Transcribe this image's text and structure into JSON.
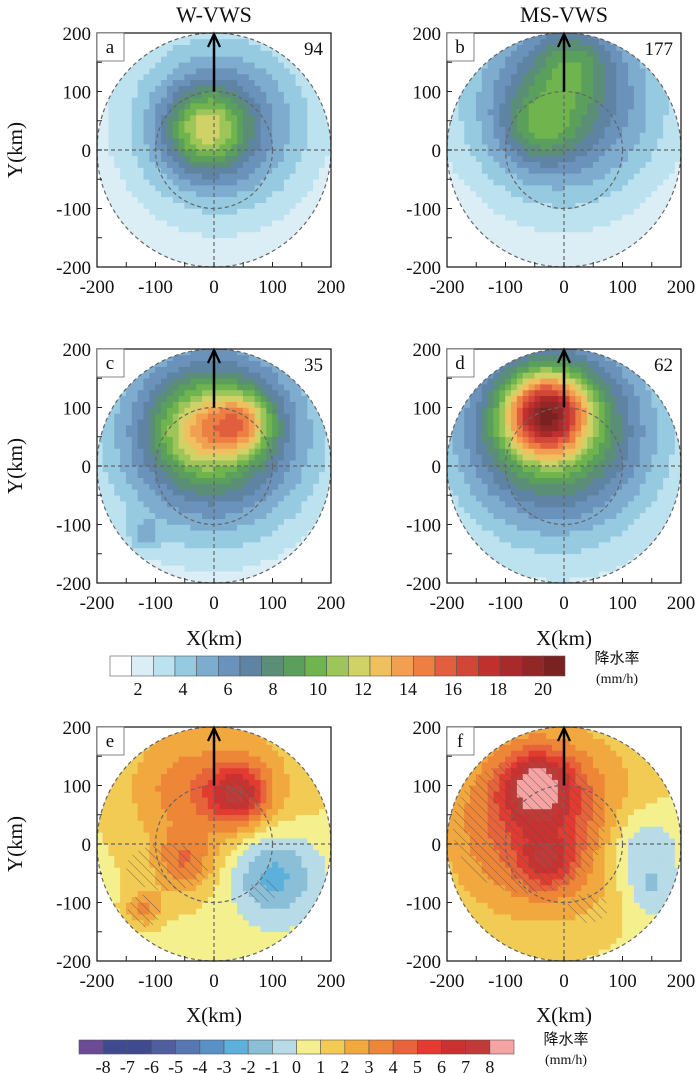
{
  "chart_data": {
    "type": "heatmap",
    "column_titles": [
      "W-VWS",
      "MS-VWS"
    ],
    "xlabel": "X(km)",
    "ylabel": "Y(km)",
    "xlim": [
      -200,
      200
    ],
    "ylim": [
      -200,
      200
    ],
    "ticks": [
      "-200",
      "-100",
      "0",
      "100",
      "200"
    ],
    "panels": [
      {
        "letter": "a",
        "count": "94",
        "cmap": "rain",
        "blobs": [
          {
            "x": -15,
            "y": 35,
            "amp": 5,
            "s": 45
          },
          {
            "x": 10,
            "y": 40,
            "amp": 4,
            "s": 90
          },
          {
            "x": 10,
            "y": 50,
            "amp": 3,
            "s": 170
          }
        ],
        "hatch": []
      },
      {
        "letter": "b",
        "count": "177",
        "cmap": "rain",
        "blobs": [
          {
            "x": -40,
            "y": 40,
            "amp": 3,
            "s": 45
          },
          {
            "x": 15,
            "y": 150,
            "amp": 2.5,
            "s": 45
          },
          {
            "x": 0,
            "y": 90,
            "amp": 5,
            "s": 110
          },
          {
            "x": 0,
            "y": 60,
            "amp": 2.5,
            "s": 190
          }
        ],
        "hatch": []
      },
      {
        "letter": "c",
        "count": "35",
        "cmap": "rain",
        "blobs": [
          {
            "x": 50,
            "y": 75,
            "amp": 5,
            "s": 35
          },
          {
            "x": -20,
            "y": 60,
            "amp": 4,
            "s": 50
          },
          {
            "x": 0,
            "y": 60,
            "amp": 7,
            "s": 110
          },
          {
            "x": 0,
            "y": 40,
            "amp": 2.5,
            "s": 200
          },
          {
            "x": -120,
            "y": -120,
            "amp": 2,
            "s": 20
          }
        ],
        "hatch": []
      },
      {
        "letter": "d",
        "count": "62",
        "cmap": "rain",
        "blobs": [
          {
            "x": -30,
            "y": 90,
            "amp": 10,
            "s": 45
          },
          {
            "x": -20,
            "y": 70,
            "amp": 8,
            "s": 105
          },
          {
            "x": 0,
            "y": 20,
            "amp": 3,
            "s": 200
          }
        ],
        "hatch": []
      },
      {
        "letter": "e",
        "count": "",
        "cmap": "diff",
        "blobs": [
          {
            "x": 40,
            "y": 85,
            "amp": 5,
            "s": 38
          },
          {
            "x": -50,
            "y": -30,
            "amp": 2.5,
            "s": 35
          },
          {
            "x": -120,
            "y": -110,
            "amp": 2.5,
            "s": 22
          },
          {
            "x": 100,
            "y": -50,
            "amp": -3.5,
            "s": 55
          },
          {
            "x": 0,
            "y": 110,
            "amp": 2,
            "s": 130
          },
          {
            "x": -60,
            "y": 90,
            "amp": 1.2,
            "s": 50
          },
          {
            "x": 0,
            "y": 0,
            "amp": 0.6,
            "s": 300
          }
        ],
        "hatch": [
          {
            "x": -80,
            "y": -40,
            "rx": 70,
            "ry": 40
          },
          {
            "x": 45,
            "y": 85,
            "rx": 35,
            "ry": 28
          },
          {
            "x": -120,
            "y": -115,
            "rx": 28,
            "ry": 28
          },
          {
            "x": 85,
            "y": -80,
            "rx": 25,
            "ry": 20
          }
        ]
      },
      {
        "letter": "f",
        "count": "",
        "cmap": "diff",
        "blobs": [
          {
            "x": -45,
            "y": 100,
            "amp": 5,
            "s": 40
          },
          {
            "x": -30,
            "y": -30,
            "amp": 3,
            "s": 30
          },
          {
            "x": -40,
            "y": 40,
            "amp": 4.5,
            "s": 110
          },
          {
            "x": 130,
            "y": 0,
            "amp": -2.5,
            "s": 45
          },
          {
            "x": 150,
            "y": -80,
            "amp": -1.8,
            "s": 35
          },
          {
            "x": 0,
            "y": 0,
            "amp": 0.8,
            "s": 300
          }
        ],
        "hatch": [
          {
            "x": -60,
            "y": 30,
            "rx": 130,
            "ry": 115
          },
          {
            "x": 40,
            "y": -110,
            "rx": 35,
            "ry": 25
          }
        ]
      }
    ],
    "colorbars": [
      {
        "id": "rain",
        "title": "降水率",
        "unit": "(mm/h)",
        "labels": [
          "2",
          "4",
          "6",
          "8",
          "10",
          "12",
          "14",
          "16",
          "18",
          "20"
        ],
        "label_values": [
          2,
          4,
          6,
          8,
          10,
          12,
          14,
          16,
          18,
          20
        ],
        "min": 0,
        "step": 1,
        "colors": [
          "#ffffff",
          "#dbeef5",
          "#bde2ef",
          "#96cae1",
          "#7eaccf",
          "#6a92bb",
          "#5f84a3",
          "#5a8e76",
          "#5b9f5c",
          "#6fb44d",
          "#9dc55a",
          "#d0d267",
          "#f0c05e",
          "#f0a050",
          "#ee7f43",
          "#e15e3e",
          "#d24638",
          "#c0302e",
          "#a82a2a",
          "#922727",
          "#7a2222"
        ]
      },
      {
        "id": "diff",
        "title": "降水率",
        "unit": "(mm/h)",
        "labels": [
          "-8",
          "-7",
          "-6",
          "-5",
          "-4",
          "-3",
          "-2",
          "-1",
          "0",
          "1",
          "2",
          "3",
          "4",
          "5",
          "6",
          "7",
          "8"
        ],
        "label_values": [
          -8,
          -7,
          -6,
          -5,
          -4,
          -3,
          -2,
          -1,
          0,
          1,
          2,
          3,
          4,
          5,
          6,
          7,
          8
        ],
        "min": -9,
        "step": 1,
        "colors": [
          "#6b4a96",
          "#3f4b8e",
          "#404a8e",
          "#505ea0",
          "#5677b2",
          "#5990c5",
          "#5cb0dc",
          "#8bbfd8",
          "#b8dbe8",
          "#f4f08e",
          "#f2cb55",
          "#f1a83e",
          "#ee8638",
          "#e7633a",
          "#e23b30",
          "#c93230",
          "#c03b37",
          "#f5a3a3"
        ]
      }
    ]
  }
}
